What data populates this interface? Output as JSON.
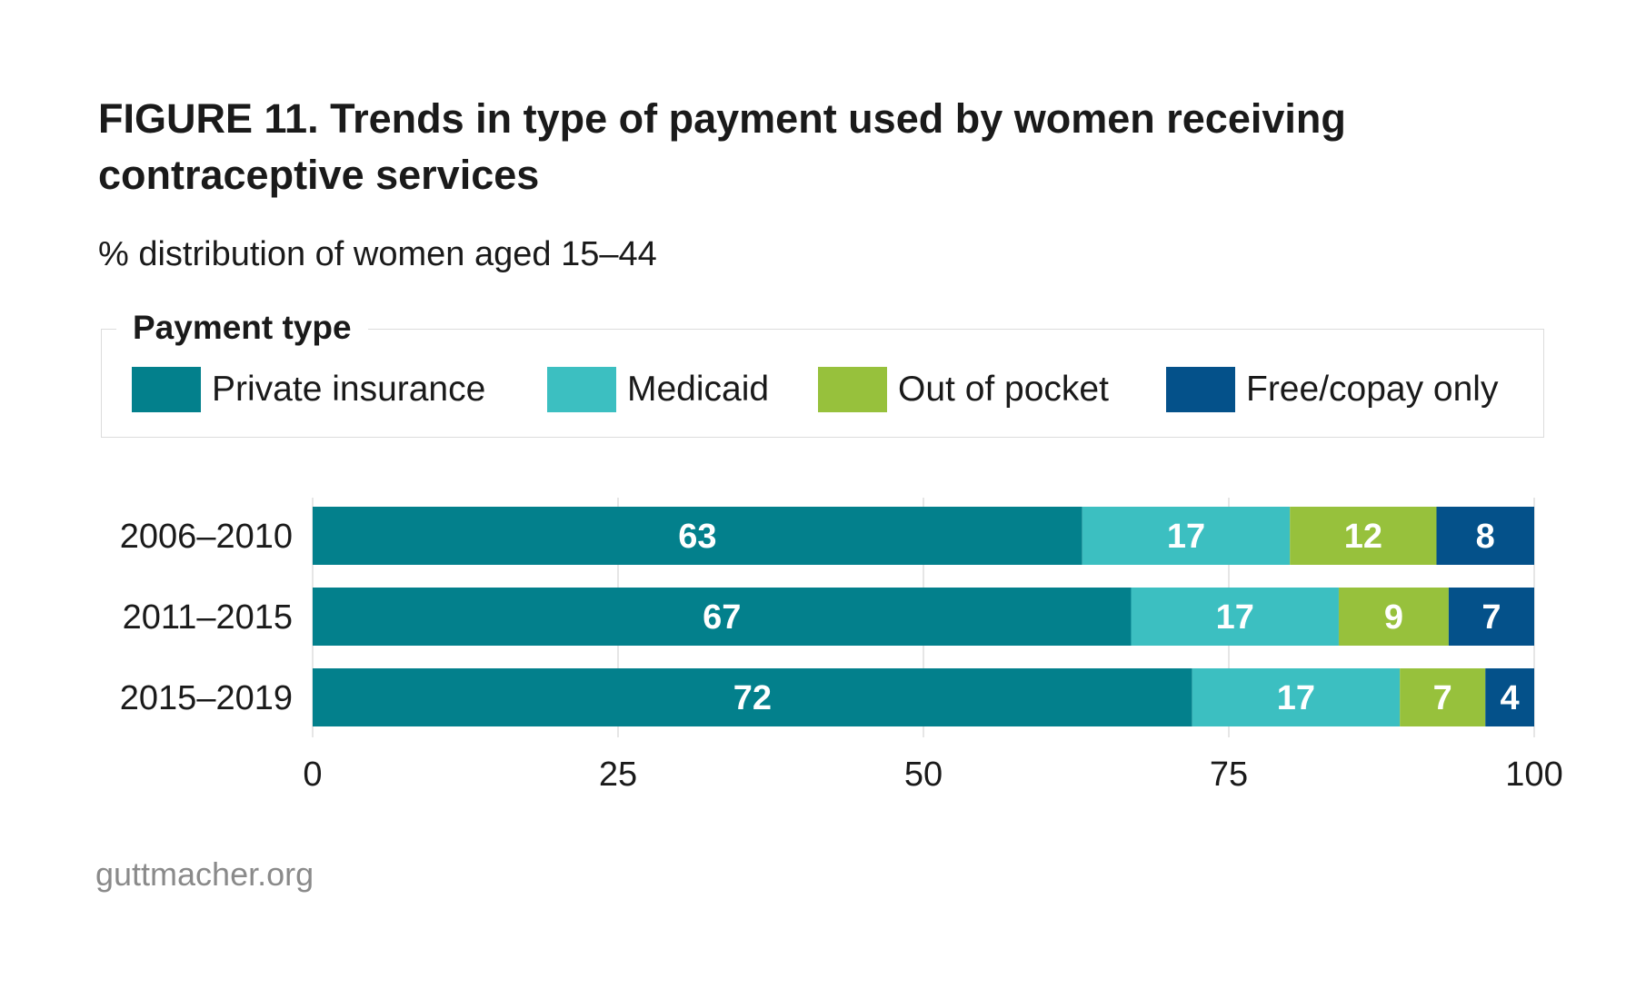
{
  "title": "FIGURE 11. Trends in type of payment used by women receiving contraceptive services",
  "subtitle": "% distribution of women aged 15–44",
  "legend": {
    "title": "Payment type",
    "items": [
      {
        "label": "Private insurance",
        "color": "#03808C"
      },
      {
        "label": "Medicaid",
        "color": "#3CBFC1"
      },
      {
        "label": "Out of pocket",
        "color": "#97C13C"
      },
      {
        "label": "Free/copay only",
        "color": "#04518A"
      }
    ]
  },
  "footer": "guttmacher.org",
  "chart_data": {
    "type": "bar",
    "orientation": "horizontal",
    "stacked": true,
    "categories": [
      "2006–2010",
      "2011–2015",
      "2015–2019"
    ],
    "series": [
      {
        "name": "Private insurance",
        "values": [
          63,
          67,
          72
        ],
        "color": "#03808C"
      },
      {
        "name": "Medicaid",
        "values": [
          17,
          17,
          17
        ],
        "color": "#3CBFC1"
      },
      {
        "name": "Out of pocket",
        "values": [
          12,
          9,
          7
        ],
        "color": "#97C13C"
      },
      {
        "name": "Free/copay only",
        "values": [
          8,
          7,
          4
        ],
        "color": "#04518A"
      }
    ],
    "xlim": [
      0,
      100
    ],
    "xticks": [
      0,
      25,
      50,
      75,
      100
    ],
    "grid": true
  }
}
